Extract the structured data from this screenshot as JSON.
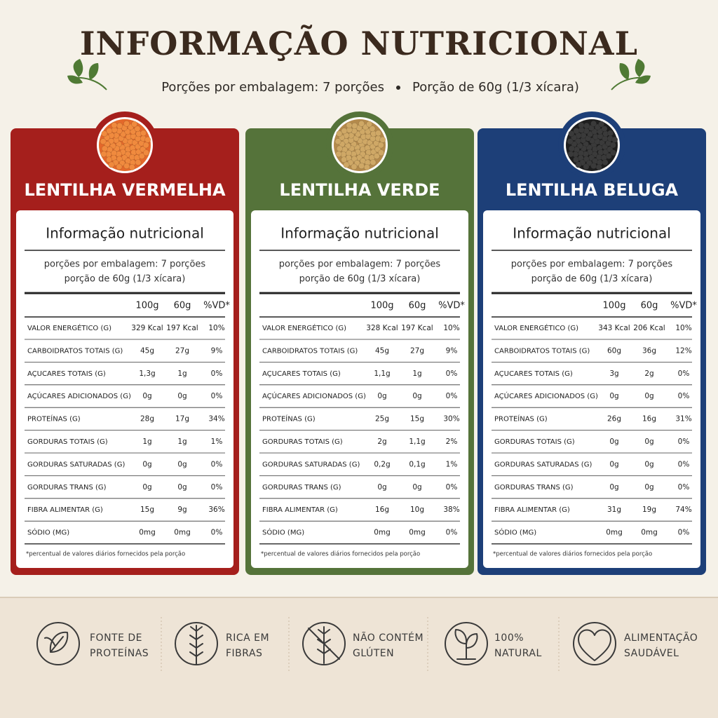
{
  "header": {
    "title": "INFORMAÇÃO NUTRICIONAL",
    "portions": "Porções por embalagem: 7 porções",
    "serving": "Porção de 60g (1/3 xícara)"
  },
  "panels": [
    {
      "name": "LENTILHA VERMELHA",
      "table_title": "Informação nutricional",
      "portions": "porções por embalagem: 7 porções",
      "serving": "porção de 60g (1/3 xícara)",
      "columns": [
        "100g",
        "60g",
        "%VD*"
      ],
      "rows": [
        [
          "VALOR ENERGÉTICO (G)",
          "329 Kcal",
          "197 Kcal",
          "10%"
        ],
        [
          "CARBOIDRATOS TOTAIS (G)",
          "45g",
          "27g",
          "9%"
        ],
        [
          "AÇUCARES TOTAIS (G)",
          "1,3g",
          "1g",
          "0%"
        ],
        [
          "AÇÚCARES ADICIONADOS (G)",
          "0g",
          "0g",
          "0%"
        ],
        [
          "PROTEÍNAS (G)",
          "28g",
          "17g",
          "34%"
        ],
        [
          "GORDURAS TOTAIS (G)",
          "1g",
          "1g",
          "1%"
        ],
        [
          "GORDURAS SATURADAS (G)",
          "0g",
          "0g",
          "0%"
        ],
        [
          "GORDURAS TRANS (G)",
          "0g",
          "0g",
          "0%"
        ],
        [
          "FIBRA ALIMENTAR (G)",
          "15g",
          "9g",
          "36%"
        ],
        [
          "SÓDIO (MG)",
          "0mg",
          "0mg",
          "0%"
        ]
      ],
      "footnote": "*percentual de valores diários fornecidos pela porção"
    },
    {
      "name": "LENTILHA VERDE",
      "table_title": "Informação nutricional",
      "portions": "porções por embalagem: 7 porções",
      "serving": "porção de 60g (1/3 xícara)",
      "columns": [
        "100g",
        "60g",
        "%VD*"
      ],
      "rows": [
        [
          "VALOR ENERGÉTICO (G)",
          "328 Kcal",
          "197 Kcal",
          "10%"
        ],
        [
          "CARBOIDRATOS TOTAIS (G)",
          "45g",
          "27g",
          "9%"
        ],
        [
          "AÇUCARES TOTAIS (G)",
          "1,1g",
          "1g",
          "0%"
        ],
        [
          "AÇÚCARES ADICIONADOS (G)",
          "0g",
          "0g",
          "0%"
        ],
        [
          "PROTEÍNAS (G)",
          "25g",
          "15g",
          "30%"
        ],
        [
          "GORDURAS TOTAIS (G)",
          "2g",
          "1,1g",
          "2%"
        ],
        [
          "GORDURAS SATURADAS (G)",
          "0,2g",
          "0,1g",
          "1%"
        ],
        [
          "GORDURAS TRANS (G)",
          "0g",
          "0g",
          "0%"
        ],
        [
          "FIBRA ALIMENTAR (G)",
          "16g",
          "10g",
          "38%"
        ],
        [
          "SÓDIO (MG)",
          "0mg",
          "0mg",
          "0%"
        ]
      ],
      "footnote": "*percentual de valores diários fornecidos pela porção"
    },
    {
      "name": "LENTILHA BELUGA",
      "table_title": "Informação nutricional",
      "portions": "porções por embalagem: 7 porções",
      "serving": "porção de 60g (1/3 xícara)",
      "columns": [
        "100g",
        "60g",
        "%VD*"
      ],
      "rows": [
        [
          "VALOR ENERGÉTICO (G)",
          "343 Kcal",
          "206 Kcal",
          "10%"
        ],
        [
          "CARBOIDRATOS TOTAIS (G)",
          "60g",
          "36g",
          "12%"
        ],
        [
          "AÇUCARES TOTAIS (G)",
          "3g",
          "2g",
          "0%"
        ],
        [
          "AÇÚCARES ADICIONADOS (G)",
          "0g",
          "0g",
          "0%"
        ],
        [
          "PROTEÍNAS (G)",
          "26g",
          "16g",
          "31%"
        ],
        [
          "GORDURAS TOTAIS (G)",
          "0g",
          "0g",
          "0%"
        ],
        [
          "GORDURAS SATURADAS (G)",
          "0g",
          "0g",
          "0%"
        ],
        [
          "GORDURAS TRANS (G)",
          "0g",
          "0g",
          "0%"
        ],
        [
          "FIBRA ALIMENTAR (G)",
          "31g",
          "19g",
          "74%"
        ],
        [
          "SÓDIO (MG)",
          "0mg",
          "0mg",
          "0%"
        ]
      ],
      "footnote": "*percentual de valores diários fornecidos pela porção"
    }
  ],
  "badges": [
    {
      "lines": [
        "FONTE DE",
        "PROTEÍNAS"
      ]
    },
    {
      "lines": [
        "RICA EM",
        "FIBRAS"
      ]
    },
    {
      "lines": [
        "NÃO CONTÉM",
        "GLÚTEN"
      ]
    },
    {
      "lines": [
        "100%",
        "NATURAL"
      ]
    },
    {
      "lines": [
        "ALIMENTAÇÃO",
        "SAUDÁVEL"
      ]
    }
  ]
}
